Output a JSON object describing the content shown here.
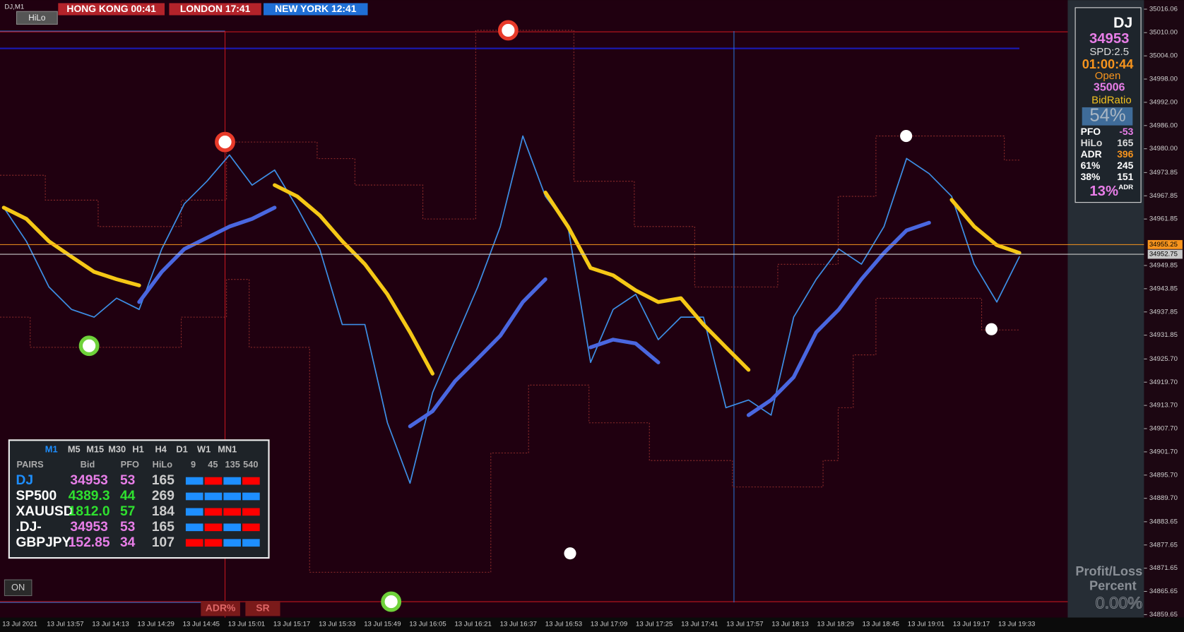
{
  "window": {
    "symbol": "DJ,M1",
    "button": "HiLo"
  },
  "clocks": [
    {
      "label": "HONG KONG  00:41",
      "color": "#b3232a"
    },
    {
      "label": "LONDON  17:41",
      "color": "#b3232a"
    },
    {
      "label": "NEW YORK  12:41",
      "color": "#1f6fd6"
    }
  ],
  "chart_data": {
    "type": "line",
    "x_labels": [
      "13 Jul 2021",
      "13 Jul 13:57",
      "13 Jul 14:13",
      "13 Jul 14:29",
      "13 Jul 14:45",
      "13 Jul 15:01",
      "13 Jul 15:17",
      "13 Jul 15:33",
      "13 Jul 15:49",
      "13 Jul 16:05",
      "13 Jul 16:21",
      "13 Jul 16:37",
      "13 Jul 16:53",
      "13 Jul 17:09",
      "13 Jul 17:25",
      "13 Jul 17:41",
      "13 Jul 17:57",
      "13 Jul 18:13",
      "13 Jul 18:29",
      "13 Jul 18:45",
      "13 Jul 19:01",
      "13 Jul 19:17",
      "13 Jul 19:33"
    ],
    "series": [
      {
        "color": "#3d8ee6",
        "values": [
          34964.8,
          34956.1,
          34944.3,
          34938.5,
          34936.5,
          34941.4,
          34938.5,
          34954.1,
          34965.8,
          34971.6,
          34978.4,
          34970.6,
          34974.5,
          34964.8,
          34954.1,
          34934.6,
          34934.6,
          34909.2,
          34893.6,
          34917.0,
          34930.7,
          34944.3,
          34959.9,
          34983.3,
          34967.7,
          34959.9,
          34924.8,
          34938.5,
          34942.4,
          34930.7,
          34936.5,
          34936.5,
          34913.1,
          34915.1,
          34911.2,
          34936.5,
          34946.3,
          34954.1,
          34950.2,
          34959.9,
          34977.5,
          34973.6,
          34967.7,
          34950.2,
          34940.4,
          34952.1
        ]
      },
      {
        "color": "#f5c816",
        "values": [
          34964.8,
          34961.9,
          34956.1,
          34952.1,
          34948.2,
          34946.3,
          34944.7,
          null,
          null,
          null,
          null,
          null,
          34970.6,
          34967.7,
          34962.8,
          34956.1,
          34950.2,
          34942.4,
          34932.6,
          34921.9,
          null,
          null,
          null,
          null,
          34968.7,
          34959.9,
          34949.2,
          34947.3,
          34943.4,
          34940.4,
          34941.4,
          34934.6,
          34928.7,
          34922.9,
          null,
          null,
          null,
          null,
          null,
          null,
          null,
          null,
          34966.8,
          34959.9,
          34955.1,
          34953.1
        ]
      },
      {
        "color": "#4a67e0",
        "values": [
          null,
          null,
          null,
          null,
          null,
          null,
          34940.4,
          34948.2,
          34954.1,
          34957.0,
          34959.9,
          34961.9,
          34964.8,
          null,
          null,
          null,
          null,
          null,
          34908.3,
          34912.2,
          34920.0,
          34925.8,
          34931.7,
          34940.4,
          34946.3,
          null,
          34928.7,
          34930.7,
          34929.7,
          34924.8,
          null,
          null,
          null,
          34911.2,
          34915.1,
          34921.0,
          34932.6,
          34938.5,
          34946.3,
          34953.1,
          34958.9,
          34960.9,
          null,
          null,
          null,
          null
        ]
      }
    ],
    "ylim": [
      34858.9,
      35018.4
    ],
    "yticks": [
      {
        "value": 35016.06,
        "label": "35016.06"
      },
      {
        "value": 35010,
        "label": "35010.00"
      },
      {
        "value": 35004,
        "label": "35004.00"
      },
      {
        "value": 34998,
        "label": "34998.00"
      },
      {
        "value": 34992,
        "label": "34992.00"
      },
      {
        "value": 34986,
        "label": "34986.00"
      },
      {
        "value": 34980,
        "label": "34980.00"
      },
      {
        "value": 34973.85,
        "label": "34973.85"
      },
      {
        "value": 34967.85,
        "label": "34967.85"
      },
      {
        "value": 34961.85,
        "label": "34961.85"
      },
      {
        "value": 34949.85,
        "label": "34949.85"
      },
      {
        "value": 34943.85,
        "label": "34943.85"
      },
      {
        "value": 34937.85,
        "label": "34937.85"
      },
      {
        "value": 34931.85,
        "label": "34931.85"
      },
      {
        "value": 34925.7,
        "label": "34925.70"
      },
      {
        "value": 34919.7,
        "label": "34919.70"
      },
      {
        "value": 34913.7,
        "label": "34913.70"
      },
      {
        "value": 34907.7,
        "label": "34907.70"
      },
      {
        "value": 34901.7,
        "label": "34901.70"
      },
      {
        "value": 34895.7,
        "label": "34895.70"
      },
      {
        "value": 34889.7,
        "label": "34889.70"
      },
      {
        "value": 34883.65,
        "label": "34883.65"
      },
      {
        "value": 34877.65,
        "label": "34877.65"
      },
      {
        "value": 34871.65,
        "label": "34871.65"
      },
      {
        "value": 34865.65,
        "label": "34865.65"
      },
      {
        "value": 34859.65,
        "label": "34859.65"
      }
    ],
    "price_markers": [
      {
        "value": 34955.25,
        "label": "34955.25",
        "color": "#f7941d"
      },
      {
        "value": 34952.75,
        "label": "34952.75",
        "color": "#c8c8c8"
      }
    ]
  },
  "panel": {
    "symbol": "DJ",
    "bid": "34953",
    "spread": "SPD:2.5",
    "timer": "01:00:44",
    "open_label": "Open",
    "open": "35006",
    "ratio_label": "BidRatio",
    "ratio": "54%",
    "rows": [
      [
        "PFO",
        "-53"
      ],
      [
        "HiLo",
        "165"
      ],
      [
        "ADR",
        "396"
      ],
      [
        "61%",
        "245"
      ],
      [
        "38%",
        "151"
      ]
    ],
    "adr_pct": "13%",
    "adr_sup": "ADR"
  },
  "table": {
    "timeframes": [
      "M1",
      "M5",
      "M15",
      "M30",
      "H1",
      "H4",
      "D1",
      "W1",
      "MN1"
    ],
    "headers": [
      "PAIRS",
      "Bid",
      "PFO",
      "HiLo",
      "9",
      "45",
      "135",
      "540"
    ],
    "rows": [
      {
        "pair": "DJ",
        "bid": "34953",
        "pfo": "53",
        "hilo": "165",
        "color": "#e87ee8",
        "signals": [
          "#1e8fff",
          "#ff0000",
          "#1e8fff",
          "#ff0000"
        ]
      },
      {
        "pair": "SP500",
        "bid": "4389.3",
        "pfo": "44",
        "hilo": "269",
        "color": "#2fe02f",
        "signals": [
          "#1e8fff",
          "#1e8fff",
          "#1e8fff",
          "#1e8fff"
        ]
      },
      {
        "pair": "XAUUSD",
        "bid": "1812.0",
        "pfo": "57",
        "hilo": "184",
        "color": "#2fe02f",
        "signals": [
          "#1e8fff",
          "#ff0000",
          "#ff0000",
          "#ff0000"
        ]
      },
      {
        "pair": ".DJ-",
        "bid": "34953",
        "pfo": "53",
        "hilo": "165",
        "color": "#e87ee8",
        "signals": [
          "#1e8fff",
          "#ff0000",
          "#1e8fff",
          "#ff0000"
        ]
      },
      {
        "pair": "GBPJPY",
        "bid": "152.85",
        "pfo": "34",
        "hilo": "107",
        "color": "#e87ee8",
        "signals": [
          "#ff0000",
          "#ff0000",
          "#1e8fff",
          "#1e8fff"
        ]
      }
    ]
  },
  "buttons": {
    "on": "ON",
    "adr": "ADR%",
    "sr": "SR"
  },
  "footer": {
    "line1": "Profit/Loss",
    "line2": "Percent",
    "value": "0.00%"
  }
}
